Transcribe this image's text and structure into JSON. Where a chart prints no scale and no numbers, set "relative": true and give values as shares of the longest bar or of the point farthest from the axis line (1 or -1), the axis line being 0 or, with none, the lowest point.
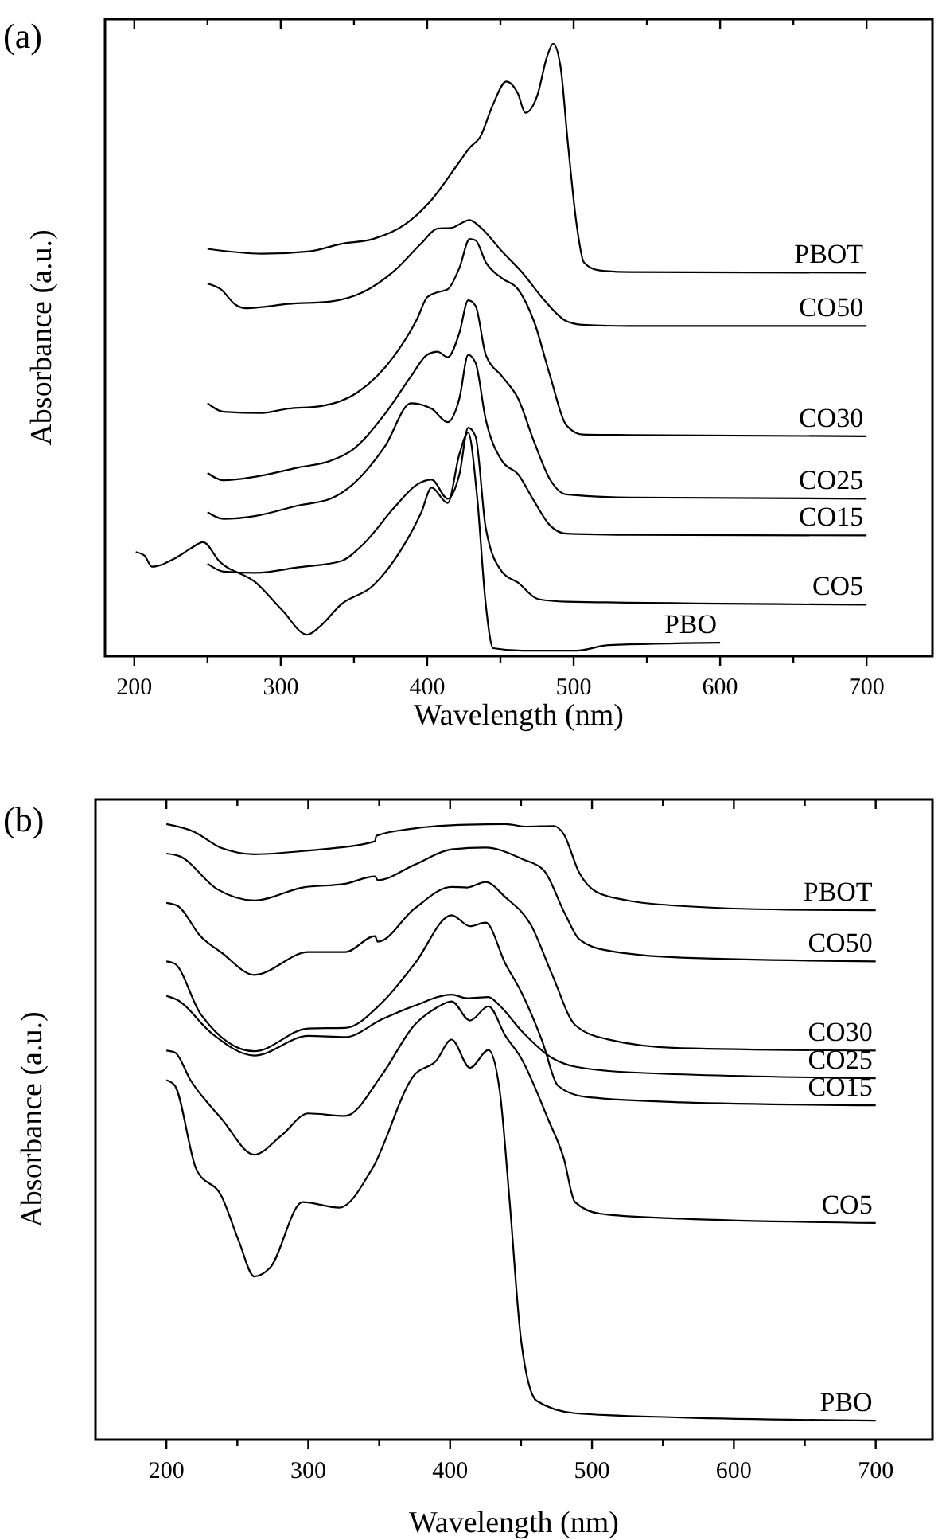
{
  "chart_data": [
    {
      "type": "line",
      "title": "(a)",
      "xlabel": "Wavelength (nm)",
      "ylabel": "Absorbance (a.u.)",
      "relative": true,
      "tick_labels": "x",
      "marker": "none",
      "line_style": "solid",
      "grid": false,
      "xlim": [
        180,
        745
      ],
      "xticks": [
        200,
        {
          "value": 250,
          "label": null
        },
        300,
        {
          "value": 350,
          "label": null
        },
        400,
        {
          "value": 450,
          "label": null
        },
        500,
        {
          "value": 550,
          "label": null
        },
        600,
        {
          "value": 650,
          "label": null
        },
        700
      ],
      "series": [
        {
          "name": "PBOT",
          "color": "#000000",
          "x": [
            250,
            287,
            320,
            341,
            363,
            385,
            403,
            422,
            429,
            436,
            445,
            454,
            462,
            467,
            475,
            482,
            486,
            491,
            496,
            502,
            507,
            517,
            538,
            700
          ],
          "values": [
            0.665,
            0.657,
            0.661,
            0.673,
            0.681,
            0.705,
            0.745,
            0.807,
            0.83,
            0.847,
            0.901,
            0.938,
            0.918,
            0.887,
            0.914,
            0.98,
            1,
            0.963,
            0.839,
            0.705,
            0.643,
            0.63,
            0.627,
            0.626
          ]
        },
        {
          "name": "CO50",
          "color": "#000000",
          "x": [
            250,
            259,
            269,
            276,
            287,
            305,
            334,
            356,
            378,
            396,
            407,
            416,
            429,
            436,
            451,
            465,
            480,
            495,
            506,
            538,
            700
          ],
          "values": [
            0.608,
            0.599,
            0.574,
            0.568,
            0.57,
            0.575,
            0.579,
            0.594,
            0.63,
            0.674,
            0.698,
            0.699,
            0.712,
            0.701,
            0.661,
            0.626,
            0.581,
            0.547,
            0.541,
            0.539,
            0.539
          ]
        },
        {
          "name": "CO30",
          "color": "#000000",
          "x": [
            250,
            261,
            287,
            305,
            327,
            352,
            378,
            393,
            400,
            407,
            414,
            422,
            429,
            433,
            440,
            451,
            462,
            473,
            484,
            495,
            506,
            538,
            700
          ],
          "values": [
            0.413,
            0.399,
            0.397,
            0.404,
            0.408,
            0.43,
            0.492,
            0.55,
            0.586,
            0.594,
            0.599,
            0.634,
            0.681,
            0.679,
            0.643,
            0.617,
            0.599,
            0.546,
            0.457,
            0.377,
            0.362,
            0.361,
            0.359
          ]
        },
        {
          "name": "CO25",
          "color": "#000000",
          "x": [
            250,
            261,
            283,
            312,
            334,
            349,
            371,
            389,
            400,
            407,
            414,
            422,
            428,
            433,
            440,
            451,
            462,
            473,
            484,
            495,
            538,
            700
          ],
          "values": [
            0.299,
            0.287,
            0.293,
            0.308,
            0.319,
            0.337,
            0.395,
            0.457,
            0.492,
            0.497,
            0.488,
            0.528,
            0.581,
            0.572,
            0.492,
            0.457,
            0.421,
            0.35,
            0.288,
            0.264,
            0.259,
            0.257
          ]
        },
        {
          "name": "CO15",
          "color": "#000000",
          "x": [
            250,
            261,
            283,
            312,
            334,
            349,
            371,
            389,
            403,
            414,
            422,
            428,
            433,
            440,
            451,
            462,
            473,
            484,
            495,
            538,
            700
          ],
          "values": [
            0.235,
            0.224,
            0.229,
            0.246,
            0.257,
            0.28,
            0.342,
            0.413,
            0.404,
            0.382,
            0.421,
            0.492,
            0.479,
            0.386,
            0.319,
            0.297,
            0.253,
            0.213,
            0.2,
            0.198,
            0.197
          ]
        },
        {
          "name": "CO5",
          "color": "#000000",
          "x": [
            250,
            261,
            283,
            312,
            341,
            356,
            378,
            393,
            403,
            414,
            422,
            428,
            433,
            440,
            451,
            462,
            476,
            495,
            700
          ],
          "values": [
            0.151,
            0.138,
            0.136,
            0.145,
            0.155,
            0.182,
            0.244,
            0.28,
            0.288,
            0.257,
            0.297,
            0.373,
            0.359,
            0.209,
            0.138,
            0.12,
            0.093,
            0.089,
            0.084
          ]
        },
        {
          "name": "PBO",
          "color": "#000000",
          "x": [
            201,
            207,
            212,
            228,
            238,
            247,
            258,
            283,
            301,
            318,
            327,
            341,
            363,
            382,
            396,
            403,
            414,
            422,
            428,
            434,
            440,
            445,
            465,
            502,
            524,
            600
          ],
          "values": [
            0.17,
            0.164,
            0.146,
            0.16,
            0.175,
            0.186,
            0.155,
            0.12,
            0.075,
            0.035,
            0.049,
            0.084,
            0.115,
            0.173,
            0.235,
            0.275,
            0.25,
            0.33,
            0.365,
            0.262,
            0.084,
            0.013,
            0.009,
            0.009,
            0.018,
            0.022
          ]
        }
      ]
    },
    {
      "type": "line",
      "title": "(b)",
      "xlabel": "Wavelength (nm)",
      "ylabel": "Absorbance (a.u.)",
      "relative": true,
      "tick_labels": "x",
      "marker": "none",
      "line_style": "solid",
      "grid": false,
      "xlim": [
        150,
        740
      ],
      "xticks": [
        200,
        {
          "value": 250,
          "label": null
        },
        300,
        {
          "value": 350,
          "label": null
        },
        400,
        {
          "value": 450,
          "label": null
        },
        500,
        {
          "value": 550,
          "label": null
        },
        600,
        {
          "value": 650,
          "label": null
        },
        700
      ],
      "series": [
        {
          "name": "PBOT",
          "color": "#000000",
          "x": [
            200,
            219,
            239,
            262,
            300,
            347,
            348,
            375,
            412,
            439,
            454,
            473,
            480,
            491,
            503,
            525,
            563,
            638,
            700
          ],
          "values": [
            1,
            0.988,
            0.961,
            0.951,
            0.957,
            0.972,
            0.981,
            0.993,
            0.999,
            1,
            0.996,
            0.997,
            0.984,
            0.921,
            0.89,
            0.876,
            0.867,
            0.861,
            0.86
          ]
        },
        {
          "name": "CO50",
          "color": "#000000",
          "x": [
            200,
            209,
            236,
            262,
            296,
            326,
            347,
            349,
            375,
            401,
            425,
            451,
            466,
            481,
            491,
            510,
            563,
            700
          ],
          "values": [
            0.952,
            0.948,
            0.894,
            0.876,
            0.897,
            0.903,
            0.915,
            0.909,
            0.934,
            0.959,
            0.962,
            0.943,
            0.925,
            0.854,
            0.813,
            0.795,
            0.783,
            0.777
          ]
        },
        {
          "name": "CO30",
          "color": "#000000",
          "x": [
            200,
            208,
            224,
            239,
            262,
            300,
            326,
            347,
            349,
            375,
            401,
            412,
            425,
            439,
            457,
            472,
            488,
            510,
            563,
            700
          ],
          "values": [
            0.872,
            0.867,
            0.818,
            0.791,
            0.755,
            0.792,
            0.792,
            0.818,
            0.809,
            0.863,
            0.898,
            0.897,
            0.906,
            0.881,
            0.836,
            0.755,
            0.674,
            0.651,
            0.636,
            0.632
          ]
        },
        {
          "name": "CO25",
          "color": "#000000",
          "x": [
            200,
            208,
            232,
            262,
            300,
            326,
            352,
            375,
            401,
            412,
            427,
            435,
            450,
            472,
            488,
            525,
            700
          ],
          "values": [
            0.721,
            0.714,
            0.66,
            0.624,
            0.656,
            0.654,
            0.683,
            0.705,
            0.723,
            0.717,
            0.719,
            0.705,
            0.665,
            0.62,
            0.606,
            0.597,
            0.587
          ]
        },
        {
          "name": "CO15",
          "color": "#000000",
          "x": [
            200,
            206,
            224,
            262,
            300,
            326,
            352,
            375,
            401,
            414,
            425,
            439,
            450,
            465,
            476,
            495,
            563,
            700
          ],
          "values": [
            0.777,
            0.773,
            0.692,
            0.631,
            0.668,
            0.669,
            0.71,
            0.773,
            0.852,
            0.834,
            0.84,
            0.773,
            0.728,
            0.647,
            0.575,
            0.557,
            0.548,
            0.543
          ]
        },
        {
          "name": "CO5",
          "color": "#000000",
          "x": [
            200,
            206,
            217,
            239,
            262,
            281,
            300,
            326,
            352,
            375,
            390,
            401,
            414,
            427,
            439,
            450,
            469,
            480,
            488,
            506,
            563,
            700
          ],
          "values": [
            0.632,
            0.629,
            0.584,
            0.521,
            0.463,
            0.494,
            0.53,
            0.526,
            0.593,
            0.674,
            0.701,
            0.712,
            0.681,
            0.704,
            0.656,
            0.62,
            0.521,
            0.458,
            0.386,
            0.367,
            0.359,
            0.352
          ]
        },
        {
          "name": "PBO",
          "color": "#000000",
          "x": [
            200,
            206,
            221,
            239,
            251,
            262,
            273,
            296,
            322,
            345,
            375,
            390,
            401,
            414,
            427,
            435,
            442,
            450,
            461,
            488,
            563,
            700
          ],
          "values": [
            0.584,
            0.575,
            0.44,
            0.395,
            0.323,
            0.265,
            0.279,
            0.386,
            0.377,
            0.44,
            0.593,
            0.615,
            0.65,
            0.604,
            0.633,
            0.566,
            0.386,
            0.162,
            0.063,
            0.043,
            0.036,
            0.031
          ]
        }
      ]
    }
  ]
}
